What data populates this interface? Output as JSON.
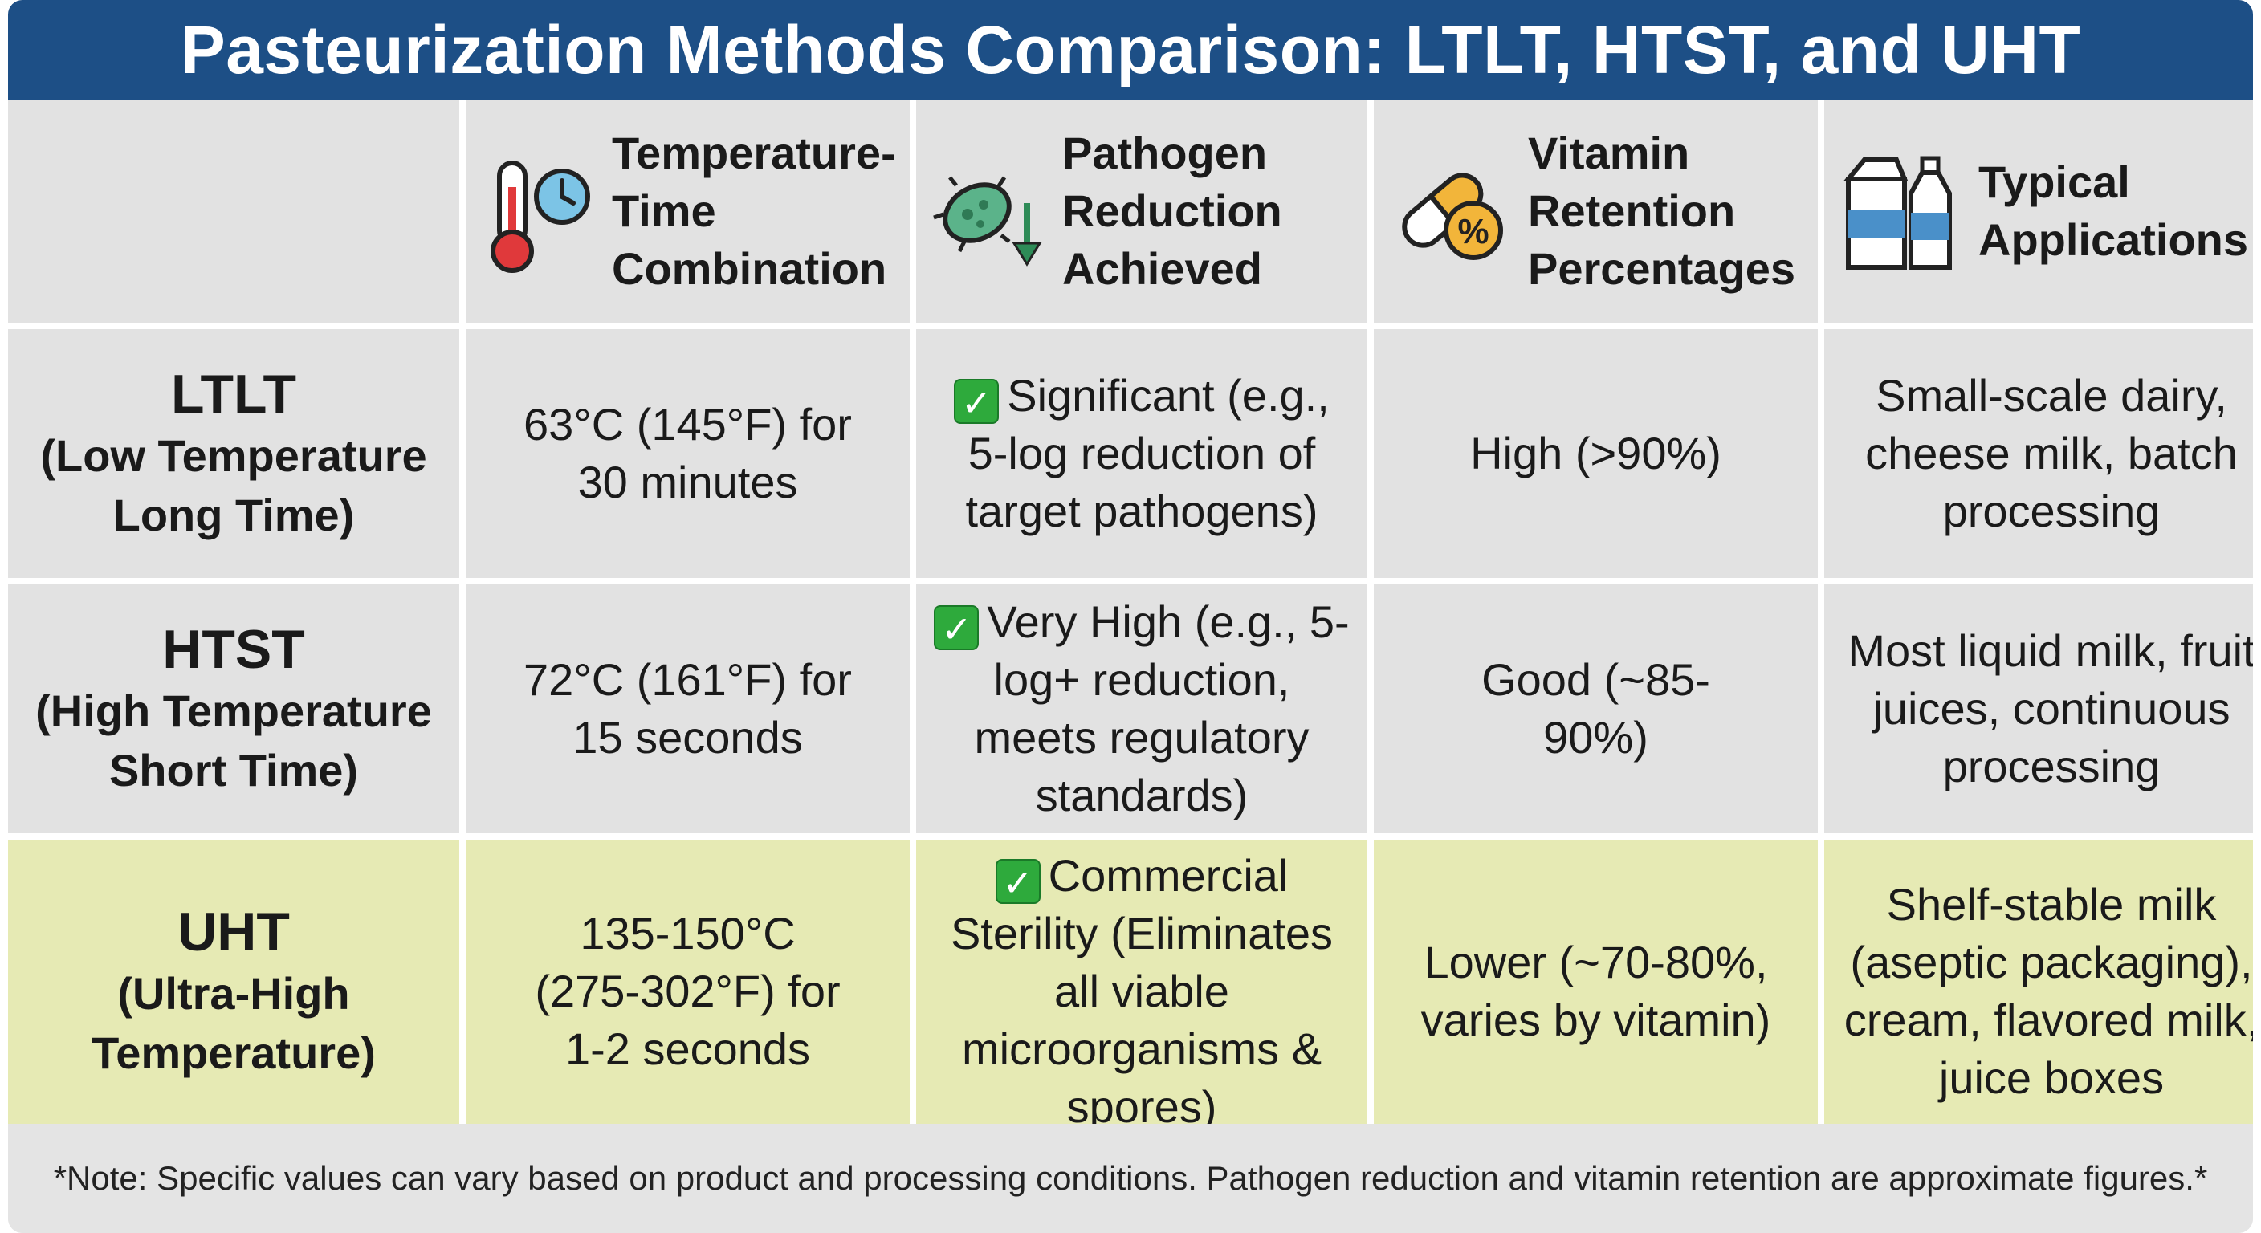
{
  "title": "Pasteurization Methods Comparison: LTLT, HTST, and UHT",
  "headers": [
    {
      "label": "Temperature-Time Combination",
      "icon": "thermometer-clock-icon"
    },
    {
      "label": "Pathogen Reduction Achieved",
      "icon": "bacteria-down-arrow-icon"
    },
    {
      "label": "Vitamin Retention Percentages",
      "icon": "capsule-percent-icon"
    },
    {
      "label": "Typical Applications",
      "icon": "milk-carton-bottle-icon"
    }
  ],
  "rows": [
    {
      "abbr": "LTLT",
      "full": "(Low Temperature Long Time)",
      "temp_time": "63°C (145°F) for 30 minutes",
      "pathogen": "Significant (e.g., 5-log reduction of target pathogens)",
      "vitamin": "High (>90%)",
      "applications": "Small-scale dairy, cheese milk, batch processing"
    },
    {
      "abbr": "HTST",
      "full": "(High Temperature Short Time)",
      "temp_time": "72°C (161°F) for 15 seconds",
      "pathogen": "Very High (e.g., 5-log+ reduction, meets regulatory standards)",
      "vitamin": "Good (~85-90%)",
      "applications": "Most liquid milk, fruit juices, continuous processing"
    },
    {
      "abbr": "UHT",
      "full": "(Ultra-High Temperature)",
      "temp_time": "135-150°C (275-302°F) for 1-2 seconds",
      "pathogen": "Commercial Sterility (Eliminates all viable microorganisms & spores)",
      "vitamin": "Lower (~70-80%, varies by vitamin)",
      "applications": "Shelf-stable milk (aseptic packaging), cream, flavored milk, juice boxes"
    }
  ],
  "note": "*Note: Specific values can vary based on product and processing conditions. Pathogen reduction and vitamin retention are approximate figures.*",
  "colors": {
    "title_bg": "#1d4f86",
    "cell_bg": "#e2e2e2",
    "uht_bg": "#e6eab4",
    "check": "#2eaa3c"
  }
}
